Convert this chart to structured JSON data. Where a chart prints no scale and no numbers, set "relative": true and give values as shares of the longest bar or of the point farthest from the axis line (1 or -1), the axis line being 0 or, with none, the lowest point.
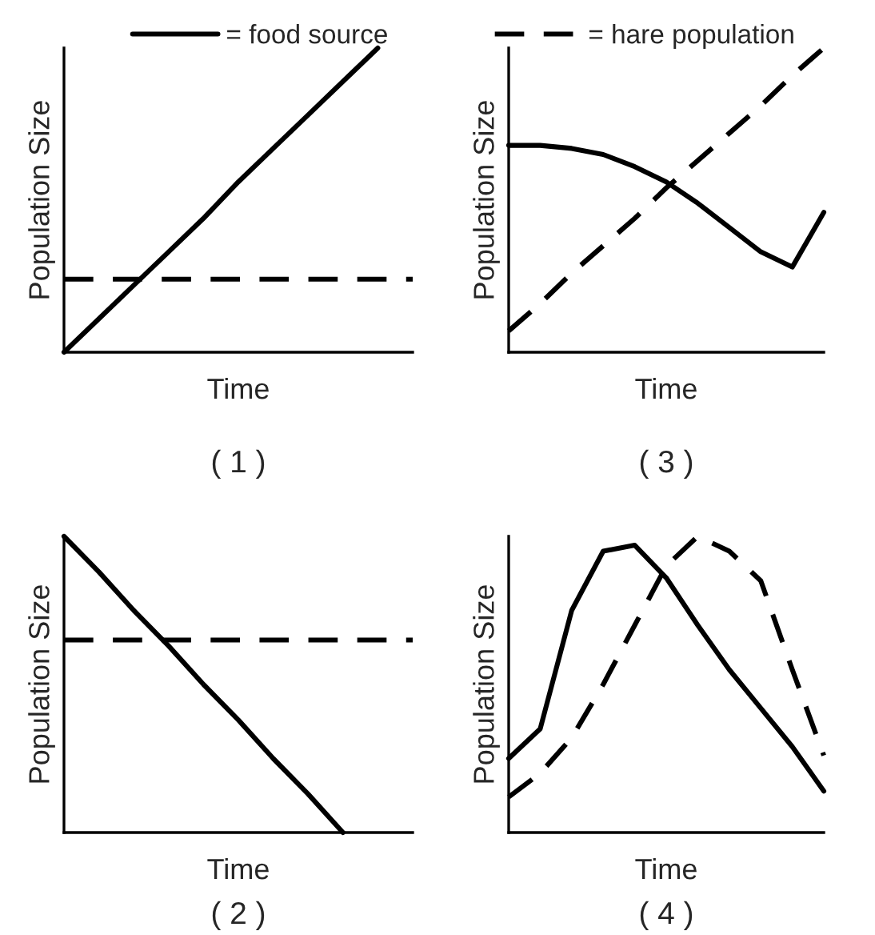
{
  "chart_data": [
    {
      "type": "line",
      "relative": true,
      "title": "( 1 )",
      "xlabel": "Time",
      "ylabel": "Population Size",
      "legend": "top",
      "marker": "none",
      "grid": false,
      "categories": [
        null,
        null,
        null,
        null,
        null,
        null,
        null,
        null,
        null,
        null,
        null
      ],
      "series": [
        {
          "name": "= food source",
          "color": "#000000",
          "line_style": "solid",
          "values": [
            0,
            0.11,
            0.22,
            0.33,
            0.44,
            0.56,
            0.67,
            0.78,
            0.89,
            1.0,
            null
          ]
        },
        {
          "name": "= hare population",
          "color": "#000000",
          "line_style": "dashed",
          "values": [
            0.24,
            0.24,
            0.24,
            0.24,
            0.24,
            0.24,
            0.24,
            0.24,
            0.24,
            0.24,
            0.24
          ]
        }
      ]
    },
    {
      "type": "line",
      "relative": true,
      "title": "( 3 )",
      "xlabel": "Time",
      "ylabel": "Population Size",
      "marker": "none",
      "grid": false,
      "categories": [
        null,
        null,
        null,
        null,
        null,
        null,
        null,
        null,
        null,
        null,
        null
      ],
      "series": [
        {
          "color": "#000000",
          "line_style": "solid",
          "values": [
            0.68,
            0.68,
            0.67,
            0.65,
            0.61,
            0.56,
            0.49,
            0.41,
            0.33,
            0.28,
            0.46
          ]
        },
        {
          "color": "#000000",
          "line_style": "dashed",
          "values": [
            0.07,
            0.16,
            0.26,
            0.35,
            0.44,
            0.54,
            0.63,
            0.72,
            0.81,
            0.91,
            1.0
          ]
        }
      ]
    },
    {
      "type": "line",
      "relative": true,
      "title": "( 2 )",
      "xlabel": "Time",
      "ylabel": "Population Size",
      "marker": "none",
      "grid": false,
      "categories": [
        null,
        null,
        null,
        null,
        null,
        null,
        null,
        null,
        null,
        null,
        null
      ],
      "series": [
        {
          "color": "#000000",
          "line_style": "solid",
          "values": [
            1.0,
            0.88,
            0.75,
            0.63,
            0.5,
            0.38,
            0.25,
            0.13,
            0,
            null,
            null
          ]
        },
        {
          "color": "#000000",
          "line_style": "dashed",
          "values": [
            0.65,
            0.65,
            0.65,
            0.65,
            0.65,
            0.65,
            0.65,
            0.65,
            0.65,
            0.65,
            0.65
          ]
        }
      ]
    },
    {
      "type": "line",
      "relative": true,
      "title": "( 4 )",
      "xlabel": "Time",
      "ylabel": "Population Size",
      "marker": "none",
      "grid": false,
      "categories": [
        null,
        null,
        null,
        null,
        null,
        null,
        null,
        null,
        null,
        null,
        null
      ],
      "series": [
        {
          "color": "#000000",
          "line_style": "solid",
          "values": [
            0.25,
            0.35,
            0.75,
            0.95,
            0.97,
            0.86,
            0.7,
            0.55,
            0.42,
            0.29,
            0.14
          ]
        },
        {
          "color": "#000000",
          "line_style": "dashed",
          "values": [
            0.12,
            0.2,
            0.32,
            0.5,
            0.7,
            0.9,
            1.0,
            0.95,
            0.85,
            0.55,
            0.26
          ]
        }
      ]
    }
  ]
}
